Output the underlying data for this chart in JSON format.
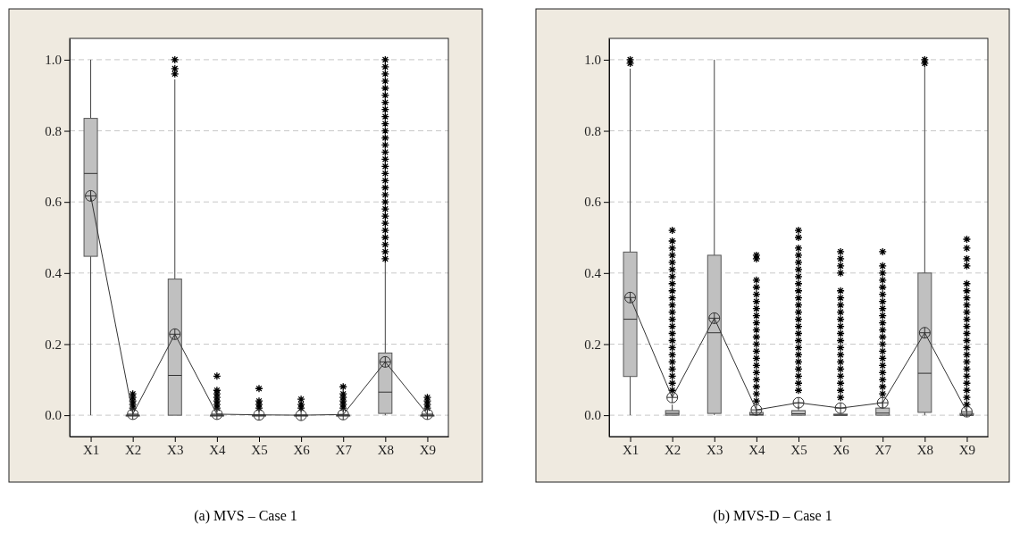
{
  "chart_data": [
    {
      "type": "box",
      "annotations": [
        "(a) MVS – Case 1"
      ],
      "categories": [
        "X1",
        "X2",
        "X3",
        "X4",
        "X5",
        "X6",
        "X7",
        "X8",
        "X9"
      ],
      "color": "#c0c0c0",
      "ylim": [
        -0.06,
        1.06
      ],
      "yticks": [
        {
          "value": 0,
          "label": "0.0"
        },
        {
          "value": 0.2,
          "label": "0.2"
        },
        {
          "value": 0.4,
          "label": "0.4"
        },
        {
          "value": 0.6,
          "label": "0.6"
        },
        {
          "value": 0.8,
          "label": "0.8"
        },
        {
          "value": 1,
          "label": "1.0"
        }
      ],
      "grid": "y",
      "series": [
        {
          "type": "line",
          "color": "#333333",
          "line_style": "solid",
          "x": [
            "X1",
            "X2",
            "X3",
            "X4",
            "X5",
            "X6",
            "X7",
            "X8",
            "X9"
          ],
          "values": [
            0.617,
            0.003,
            0.228,
            0.003,
            0.001,
            0,
            0.002,
            0.15,
            0.003
          ]
        }
      ],
      "boxes": [
        {
          "low": 0,
          "q1": 0.447,
          "median": 0.68,
          "q3": 0.835,
          "high": 1.0,
          "mean": 0.617
        },
        {
          "low": 0,
          "q1": 0,
          "median": 0,
          "q3": 0,
          "high": 0,
          "mean": 0.003,
          "outliers": [
            0.02,
            0.03,
            0.04,
            0.05,
            0.06
          ]
        },
        {
          "low": 0,
          "q1": 0,
          "median": 0.112,
          "q3": 0.383,
          "high": 0.945,
          "mean": 0.228,
          "outliers": [
            0.96,
            0.975,
            1.0
          ]
        },
        {
          "low": 0,
          "q1": 0,
          "median": 0,
          "q3": 0,
          "high": 0,
          "mean": 0.003,
          "outliers": [
            0.02,
            0.03,
            0.04,
            0.05,
            0.06,
            0.07,
            0.11
          ]
        },
        {
          "low": 0,
          "q1": 0,
          "median": 0,
          "q3": 0,
          "high": 0,
          "mean": 0.001,
          "outliers": [
            0.02,
            0.03,
            0.04,
            0.075
          ]
        },
        {
          "low": 0,
          "q1": 0,
          "median": 0,
          "q3": 0,
          "high": 0,
          "mean": 0,
          "outliers": [
            0.02,
            0.03,
            0.045
          ]
        },
        {
          "low": 0,
          "q1": 0,
          "median": 0,
          "q3": 0,
          "high": 0,
          "mean": 0.002,
          "outliers": [
            0.02,
            0.03,
            0.04,
            0.05,
            0.06,
            0.08
          ]
        },
        {
          "low": 0,
          "q1": 0.005,
          "median": 0.065,
          "q3": 0.175,
          "high": 0.43,
          "mean": 0.15,
          "outliers": [
            0.44,
            0.46,
            0.48,
            0.5,
            0.52,
            0.54,
            0.56,
            0.58,
            0.6,
            0.62,
            0.64,
            0.66,
            0.68,
            0.7,
            0.72,
            0.74,
            0.76,
            0.78,
            0.8,
            0.82,
            0.84,
            0.86,
            0.88,
            0.9,
            0.92,
            0.94,
            0.96,
            0.98,
            1.0
          ]
        },
        {
          "low": 0,
          "q1": 0,
          "median": 0,
          "q3": 0,
          "high": 0,
          "mean": 0.003,
          "outliers": [
            0.02,
            0.03,
            0.04,
            0.05
          ]
        }
      ]
    },
    {
      "type": "box",
      "annotations": [
        "(b) MVS-D – Case 1"
      ],
      "categories": [
        "X1",
        "X2",
        "X3",
        "X4",
        "X5",
        "X6",
        "X7",
        "X8",
        "X9"
      ],
      "color": "#c0c0c0",
      "ylim": [
        -0.06,
        1.06
      ],
      "yticks": [
        {
          "value": 0,
          "label": "0.0"
        },
        {
          "value": 0.2,
          "label": "0.2"
        },
        {
          "value": 0.4,
          "label": "0.4"
        },
        {
          "value": 0.6,
          "label": "0.6"
        },
        {
          "value": 0.8,
          "label": "0.8"
        },
        {
          "value": 1,
          "label": "1.0"
        }
      ],
      "grid": "y",
      "series": [
        {
          "type": "line",
          "color": "#333333",
          "line_style": "solid",
          "x": [
            "X1",
            "X2",
            "X3",
            "X4",
            "X5",
            "X6",
            "X7",
            "X8",
            "X9"
          ],
          "values": [
            0.331,
            0.05,
            0.273,
            0.015,
            0.035,
            0.02,
            0.035,
            0.232,
            0.01
          ]
        }
      ],
      "boxes": [
        {
          "low": 0,
          "q1": 0.109,
          "median": 0.27,
          "q3": 0.459,
          "high": 0.975,
          "mean": 0.331,
          "outliers": [
            0.99,
            1.0
          ]
        },
        {
          "low": 0,
          "q1": 0,
          "median": 0.005,
          "q3": 0.013,
          "high": 0.03,
          "mean": 0.05,
          "outliers": [
            0.07,
            0.09,
            0.11,
            0.13,
            0.15,
            0.17,
            0.19,
            0.21,
            0.23,
            0.25,
            0.27,
            0.29,
            0.31,
            0.33,
            0.35,
            0.37,
            0.39,
            0.41,
            0.43,
            0.45,
            0.47,
            0.49,
            0.52
          ]
        },
        {
          "low": 0,
          "q1": 0.005,
          "median": 0.232,
          "q3": 0.45,
          "high": 1.0,
          "mean": 0.273
        },
        {
          "low": 0,
          "q1": 0,
          "median": 0.002,
          "q3": 0.008,
          "high": 0.015,
          "mean": 0.015,
          "outliers": [
            0.04,
            0.06,
            0.08,
            0.1,
            0.12,
            0.14,
            0.16,
            0.18,
            0.2,
            0.22,
            0.24,
            0.26,
            0.28,
            0.3,
            0.32,
            0.34,
            0.36,
            0.38,
            0.44,
            0.45
          ]
        },
        {
          "low": 0,
          "q1": 0,
          "median": 0.004,
          "q3": 0.013,
          "high": 0.025,
          "mean": 0.035,
          "outliers": [
            0.07,
            0.09,
            0.11,
            0.13,
            0.15,
            0.17,
            0.19,
            0.21,
            0.23,
            0.25,
            0.27,
            0.29,
            0.31,
            0.33,
            0.35,
            0.37,
            0.39,
            0.41,
            0.43,
            0.45,
            0.47,
            0.5,
            0.52
          ]
        },
        {
          "low": 0,
          "q1": 0,
          "median": 0,
          "q3": 0.003,
          "high": 0.003,
          "mean": 0.02,
          "outliers": [
            0.05,
            0.07,
            0.09,
            0.11,
            0.13,
            0.15,
            0.17,
            0.19,
            0.21,
            0.23,
            0.25,
            0.27,
            0.29,
            0.31,
            0.33,
            0.35,
            0.4,
            0.42,
            0.44,
            0.46
          ]
        },
        {
          "low": 0,
          "q1": 0,
          "median": 0.006,
          "q3": 0.02,
          "high": 0.04,
          "mean": 0.035,
          "outliers": [
            0.06,
            0.08,
            0.1,
            0.12,
            0.14,
            0.16,
            0.18,
            0.2,
            0.22,
            0.24,
            0.26,
            0.28,
            0.3,
            0.32,
            0.34,
            0.36,
            0.38,
            0.4,
            0.42,
            0.46
          ]
        },
        {
          "low": 0,
          "q1": 0.008,
          "median": 0.118,
          "q3": 0.4,
          "high": 0.98,
          "mean": 0.232,
          "outliers": [
            0.99,
            1.0
          ]
        },
        {
          "low": 0,
          "q1": 0,
          "median": 0,
          "q3": 0.005,
          "high": 0.01,
          "mean": 0.01,
          "outliers": [
            0.03,
            0.05,
            0.07,
            0.09,
            0.11,
            0.13,
            0.15,
            0.17,
            0.19,
            0.21,
            0.23,
            0.25,
            0.27,
            0.29,
            0.31,
            0.33,
            0.35,
            0.37,
            0.42,
            0.44,
            0.47,
            0.495
          ]
        }
      ]
    }
  ]
}
